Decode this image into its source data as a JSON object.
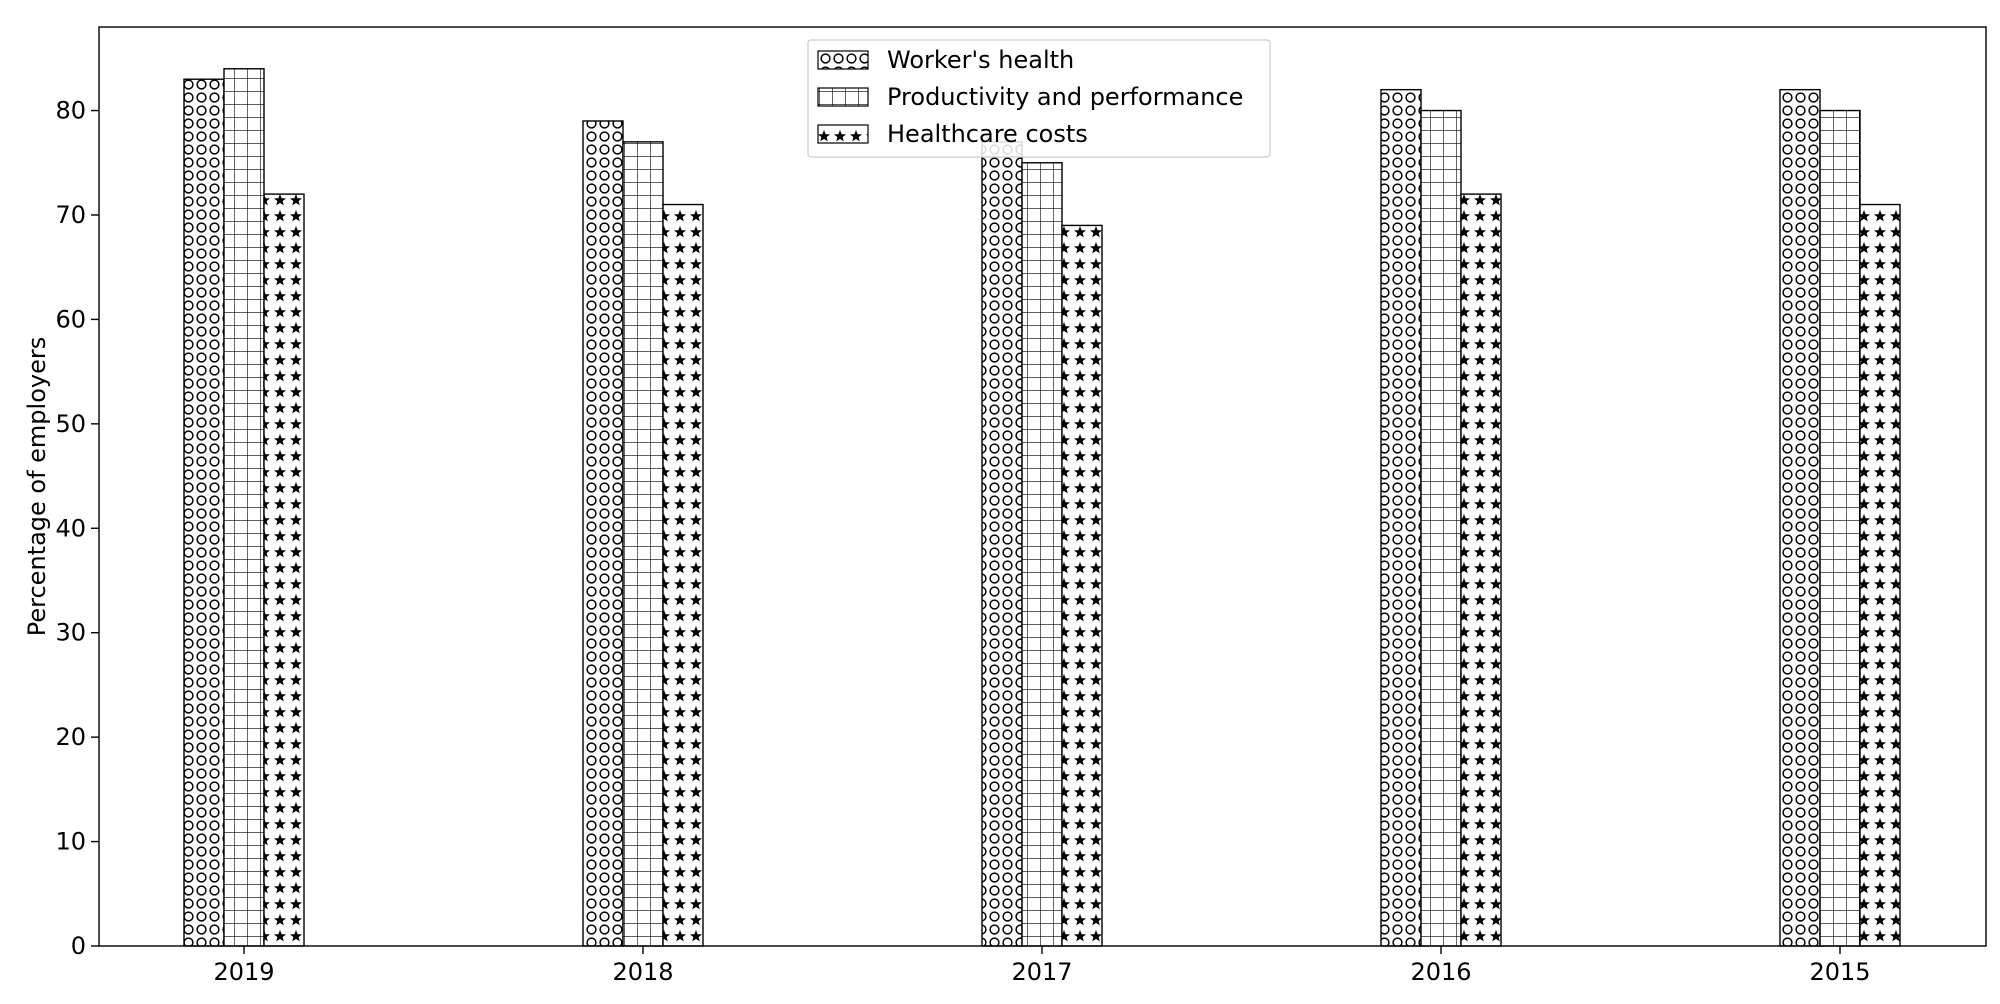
{
  "chart_data": {
    "type": "bar",
    "title": "",
    "xlabel": "",
    "ylabel": "Percentage of employers",
    "categories": [
      "2019",
      "2018",
      "2017",
      "2016",
      "2015"
    ],
    "series": [
      {
        "name": "Worker's health",
        "values": [
          83,
          79,
          77,
          82,
          82
        ],
        "pattern": "circles"
      },
      {
        "name": "Productivity and performance",
        "values": [
          84,
          77,
          75,
          80,
          80
        ],
        "pattern": "grid"
      },
      {
        "name": "Healthcare costs",
        "values": [
          72,
          71,
          69,
          72,
          71
        ],
        "pattern": "stars"
      }
    ],
    "ylim": [
      0,
      88
    ],
    "yticks": [
      0,
      10,
      20,
      30,
      40,
      50,
      60,
      70,
      80
    ],
    "grid": false,
    "legend_position": "top-center",
    "colors": {
      "bar_fill": "#ffffff",
      "edge": "#000000",
      "pattern": "#000000"
    }
  }
}
